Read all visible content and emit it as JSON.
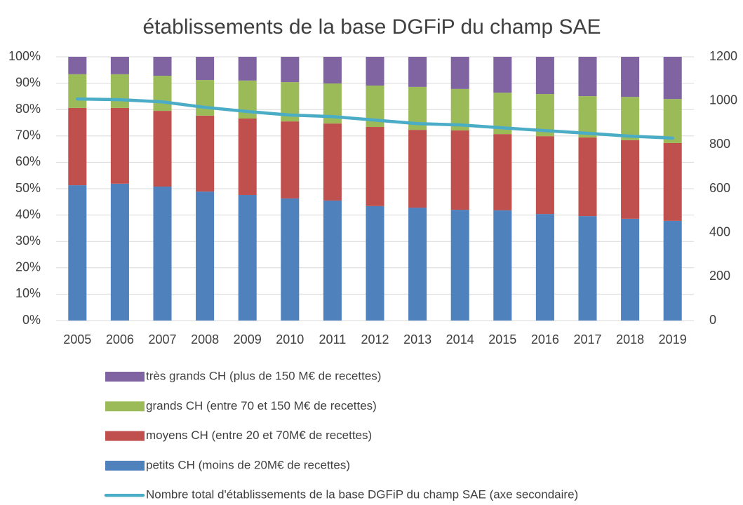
{
  "chart_data": {
    "type": "bar",
    "stacked": true,
    "title": "établissements de la base DGFiP du champ SAE",
    "categories": [
      "2005",
      "2006",
      "2007",
      "2008",
      "2009",
      "2010",
      "2011",
      "2012",
      "2013",
      "2014",
      "2015",
      "2016",
      "2017",
      "2018",
      "2019"
    ],
    "series": [
      {
        "name": "petits CH (moins de 20M€ de recettes)",
        "color": "#4f81bd",
        "values": [
          51.3,
          51.9,
          50.8,
          48.9,
          47.6,
          46.3,
          45.5,
          43.4,
          42.8,
          42.0,
          41.8,
          40.4,
          39.6,
          38.6,
          37.8
        ]
      },
      {
        "name": "moyens CH (entre 20 et 70M€ de recettes)",
        "color": "#c0504d",
        "values": [
          29.3,
          28.7,
          28.7,
          28.8,
          29.0,
          29.2,
          29.2,
          30.0,
          29.5,
          30.1,
          28.9,
          29.5,
          29.8,
          29.8,
          29.5
        ]
      },
      {
        "name": "grands CH (entre 70 et 150 M€ de recettes)",
        "color": "#9bbb59",
        "values": [
          12.8,
          12.8,
          13.3,
          13.5,
          14.4,
          14.9,
          15.2,
          15.7,
          16.3,
          15.7,
          15.7,
          16.0,
          15.7,
          16.4,
          16.7
        ]
      },
      {
        "name": "très grands CH (plus de 150 M€ de recettes)",
        "color": "#8064a2",
        "values": [
          6.6,
          6.6,
          7.2,
          8.8,
          9.0,
          9.6,
          10.1,
          10.9,
          11.4,
          12.2,
          13.6,
          14.1,
          14.9,
          15.2,
          16.0
        ]
      },
      {
        "name": "Nombre total d'établissements de la base DGFiP du champ SAE (axe secondaire)",
        "color": "#4bacc6",
        "type": "line",
        "axis": "y2",
        "values": [
          1008,
          1005,
          995,
          970,
          951,
          935,
          928,
          912,
          896,
          890,
          877,
          864,
          852,
          839,
          830
        ]
      }
    ],
    "ylim": [
      0,
      100
    ],
    "yticks": [
      {
        "value": 0,
        "label": "0%"
      },
      {
        "value": 10,
        "label": "10%"
      },
      {
        "value": 20,
        "label": "20%"
      },
      {
        "value": 30,
        "label": "30%"
      },
      {
        "value": 40,
        "label": "40%"
      },
      {
        "value": 50,
        "label": "50%"
      },
      {
        "value": 60,
        "label": "60%"
      },
      {
        "value": 70,
        "label": "70%"
      },
      {
        "value": 80,
        "label": "80%"
      },
      {
        "value": 90,
        "label": "90%"
      },
      {
        "value": 100,
        "label": "100%"
      }
    ],
    "y2lim": [
      0,
      1200
    ],
    "y2ticks": [
      0,
      200,
      400,
      600,
      800,
      1000,
      1200
    ],
    "grid": true
  }
}
